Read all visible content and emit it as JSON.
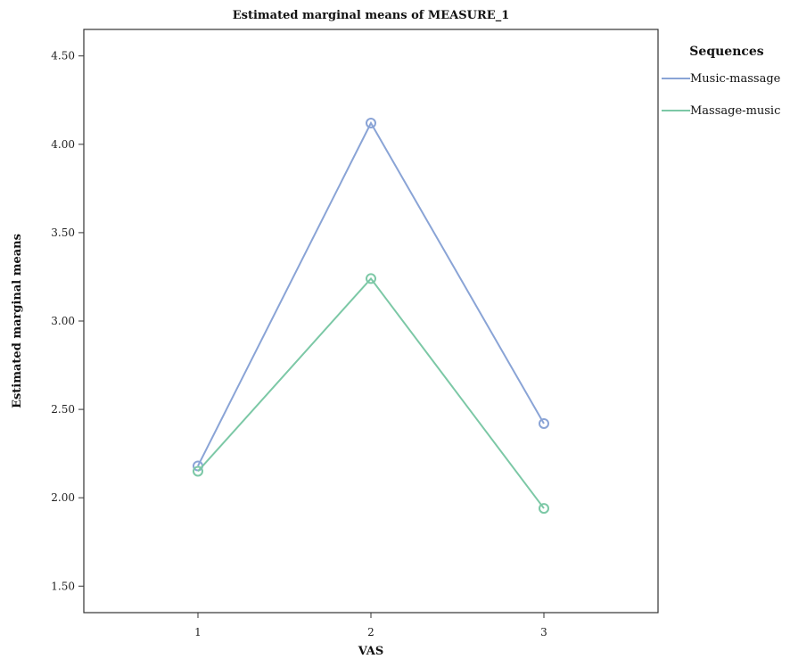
{
  "chart_data": {
    "type": "line",
    "title": "Estimated marginal means of MEASURE_1",
    "xlabel": "VAS",
    "ylabel": "Estimated marginal means",
    "categories": [
      "1",
      "2",
      "3"
    ],
    "ylim": [
      1.35,
      4.65
    ],
    "yticks": [
      "1.50",
      "2.00",
      "2.50",
      "3.00",
      "3.50",
      "4.00",
      "4.50"
    ],
    "grid": false,
    "legend": {
      "title": "Sequences",
      "placement": "right"
    },
    "series": [
      {
        "name": "Music-massage",
        "color": "#8aa4d6",
        "values": [
          2.18,
          4.12,
          2.42
        ]
      },
      {
        "name": "Massage-music",
        "color": "#7cc8a6",
        "values": [
          2.15,
          3.24,
          1.94
        ]
      }
    ]
  }
}
